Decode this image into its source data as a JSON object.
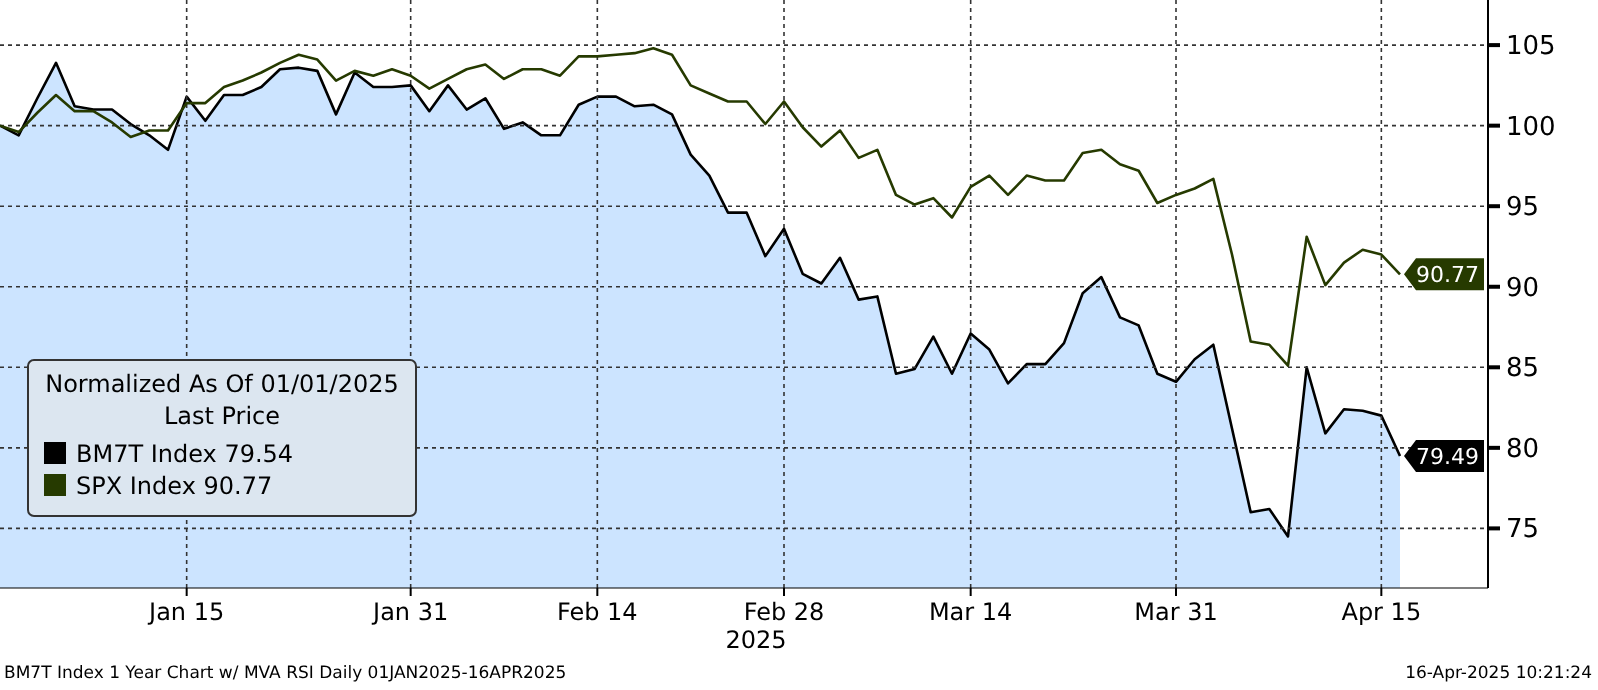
{
  "chart_data": {
    "type": "line",
    "xlabel": "2025",
    "legend_title": "Normalized As Of 01/01/2025",
    "legend": "bottom left",
    "grid": true,
    "categories": [
      null,
      null,
      null,
      null,
      null,
      null,
      null,
      null,
      null,
      null,
      "Jan 15",
      null,
      null,
      null,
      null,
      null,
      null,
      null,
      null,
      null,
      null,
      null,
      "Jan 31",
      null,
      null,
      null,
      null,
      null,
      null,
      null,
      null,
      null,
      "Feb 14",
      null,
      null,
      null,
      null,
      null,
      null,
      null,
      null,
      null,
      "Feb 28",
      null,
      null,
      null,
      null,
      null,
      null,
      null,
      null,
      null,
      "Mar 14",
      null,
      null,
      null,
      null,
      null,
      null,
      null,
      null,
      null,
      null,
      "Mar 31",
      null,
      null,
      null,
      null,
      null,
      null,
      null,
      null,
      null,
      null,
      "Apr 15",
      null
    ],
    "ylim": [
      71.3,
      107.8
    ],
    "yticks": [
      75,
      80,
      85,
      90,
      95,
      100,
      105
    ],
    "series": [
      {
        "name": "BM7T Index 79.54",
        "type": "area",
        "color": "#000000",
        "values": [
          100,
          99.4,
          101.7,
          103.9,
          101.2,
          101.0,
          101.0,
          100.1,
          99.4,
          98.5,
          101.8,
          100.3,
          101.9,
          101.9,
          102.4,
          103.5,
          103.6,
          103.4,
          100.7,
          103.3,
          102.4,
          102.4,
          102.5,
          100.9,
          102.5,
          101.0,
          101.7,
          99.8,
          100.2,
          99.4,
          99.4,
          101.3,
          101.8,
          101.8,
          101.2,
          101.3,
          100.7,
          98.2,
          96.9,
          94.6,
          94.6,
          91.9,
          93.6,
          90.8,
          90.2,
          91.8,
          89.2,
          89.4,
          84.6,
          84.9,
          86.9,
          84.6,
          87.1,
          86.1,
          84.0,
          85.2,
          85.2,
          86.5,
          89.6,
          90.6,
          88.1,
          87.6,
          84.6,
          84.1,
          85.5,
          86.4,
          81.2,
          76.0,
          76.2,
          74.5,
          85.0,
          80.9,
          82.4,
          82.3,
          82.0,
          79.49
        ],
        "value_labels": [
          null,
          null,
          null,
          null,
          null,
          null,
          null,
          null,
          null,
          null,
          null,
          null,
          null,
          null,
          null,
          null,
          null,
          null,
          null,
          null,
          null,
          null,
          null,
          null,
          null,
          null,
          null,
          null,
          null,
          null,
          null,
          null,
          null,
          null,
          null,
          null,
          null,
          null,
          null,
          null,
          null,
          null,
          null,
          null,
          null,
          null,
          null,
          null,
          null,
          null,
          null,
          null,
          null,
          null,
          null,
          null,
          null,
          null,
          null,
          null,
          null,
          null,
          null,
          null,
          null,
          null,
          null,
          null,
          null,
          null,
          null,
          null,
          null,
          null,
          null,
          "79.49"
        ]
      },
      {
        "name": "SPX Index 90.77",
        "color": "#263a00",
        "values": [
          100,
          99.6,
          100.8,
          101.9,
          100.9,
          100.9,
          100.2,
          99.3,
          99.7,
          99.7,
          101.4,
          101.4,
          102.4,
          102.8,
          103.3,
          103.9,
          104.4,
          104.1,
          102.8,
          103.4,
          103.1,
          103.5,
          103.1,
          102.3,
          102.9,
          103.5,
          103.8,
          102.9,
          103.5,
          103.5,
          103.1,
          104.3,
          104.3,
          104.4,
          104.5,
          104.8,
          104.4,
          102.5,
          102.0,
          101.5,
          101.5,
          100.1,
          101.5,
          99.9,
          98.7,
          99.7,
          98.0,
          98.5,
          95.7,
          95.1,
          95.5,
          94.3,
          96.2,
          96.9,
          95.7,
          96.9,
          96.6,
          96.6,
          98.3,
          98.5,
          97.6,
          97.2,
          95.2,
          95.7,
          96.1,
          96.7,
          92.0,
          86.6,
          86.4,
          85.1,
          93.1,
          90.1,
          91.5,
          92.3,
          92.0,
          90.77
        ],
        "value_labels": [
          null,
          null,
          null,
          null,
          null,
          null,
          null,
          null,
          null,
          null,
          null,
          null,
          null,
          null,
          null,
          null,
          null,
          null,
          null,
          null,
          null,
          null,
          null,
          null,
          null,
          null,
          null,
          null,
          null,
          null,
          null,
          null,
          null,
          null,
          null,
          null,
          null,
          null,
          null,
          null,
          null,
          null,
          null,
          null,
          null,
          null,
          null,
          null,
          null,
          null,
          null,
          null,
          null,
          null,
          null,
          null,
          null,
          null,
          null,
          null,
          null,
          null,
          null,
          null,
          null,
          null,
          null,
          null,
          null,
          null,
          null,
          null,
          null,
          null,
          null,
          "90.77"
        ]
      }
    ],
    "annotations": [
      "Last Price",
      "BM7T Index 1 Year Chart w/ MVA RSI Daily 01JAN2025-16APR2025",
      "16-Apr-2025 10:21:24"
    ]
  }
}
